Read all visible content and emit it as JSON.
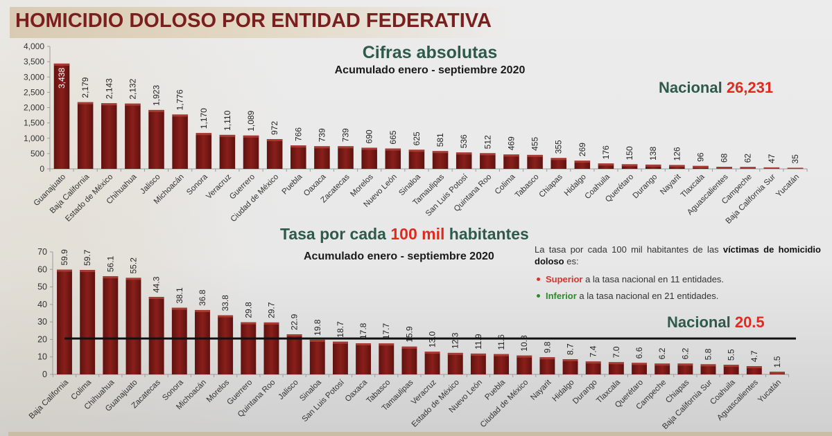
{
  "page": {
    "title": "HOMICIDIO DOLOSO POR ENTIDAD FEDERATIVA"
  },
  "colors": {
    "bar": "#7b1a16",
    "title": "#7a1e1e",
    "green_heading": "#2e5a4c",
    "red_highlight": "#e02a1f",
    "superior": "#d9322a",
    "inferior": "#2c8a2c"
  },
  "chart_data": [
    {
      "type": "bar",
      "title": "Cifras absolutas",
      "subtitle": "Acumulado enero - septiembre 2020",
      "xlabel": "",
      "ylabel": "",
      "ylim": [
        0,
        4000
      ],
      "yticks": [
        0,
        500,
        1000,
        1500,
        2000,
        2500,
        3000,
        3500,
        4000
      ],
      "ytick_labels": [
        "0",
        "500",
        "1,000",
        "1,500",
        "2,000",
        "2,500",
        "3,000",
        "3,500",
        "4,000"
      ],
      "grid": false,
      "legend": "none",
      "national": {
        "label": "Nacional",
        "value_text": "26,231",
        "value": 26231
      },
      "categories": [
        "Guanajuato",
        "Baja California",
        "Estado de México",
        "Chihuahua",
        "Jalisco",
        "Michoacán",
        "Sonora",
        "Veracruz",
        "Guerrero",
        "Ciudad de México",
        "Puebla",
        "Oaxaca",
        "Zacatecas",
        "Morelos",
        "Nuevo León",
        "Sinaloa",
        "Tamaulipas",
        "San Luis Potosí",
        "Quintana Roo",
        "Colima",
        "Tabasco",
        "Chiapas",
        "Hidalgo",
        "Coahuila",
        "Querétaro",
        "Durango",
        "Nayarit",
        "Tlaxcala",
        "Aguascalientes",
        "Campeche",
        "Baja California Sur",
        "Yucatán"
      ],
      "values": [
        3438,
        2179,
        2143,
        2132,
        1923,
        1776,
        1170,
        1110,
        1089,
        972,
        766,
        739,
        739,
        690,
        665,
        625,
        581,
        536,
        512,
        469,
        455,
        355,
        269,
        176,
        150,
        138,
        126,
        96,
        68,
        62,
        47,
        35
      ],
      "value_labels": [
        "3,438",
        "2,179",
        "2,143",
        "2,132",
        "1,923",
        "1,776",
        "1,170",
        "1,110",
        "1,089",
        "972",
        "766",
        "739",
        "739",
        "690",
        "665",
        "625",
        "581",
        "536",
        "512",
        "469",
        "455",
        "355",
        "269",
        "176",
        "150",
        "138",
        "126",
        "96",
        "68",
        "62",
        "47",
        "35"
      ]
    },
    {
      "type": "bar",
      "title_parts": [
        "Tasa por cada ",
        "100 mil",
        " habitantes"
      ],
      "subtitle": "Acumulado enero - septiembre 2020",
      "xlabel": "",
      "ylabel": "",
      "ylim": [
        0,
        70
      ],
      "yticks": [
        0,
        10,
        20,
        30,
        40,
        50,
        60,
        70
      ],
      "ytick_labels": [
        "0",
        "10",
        "20",
        "30",
        "40",
        "50",
        "60",
        "70"
      ],
      "grid": false,
      "legend": "none",
      "reference_line": {
        "label": "Nacional",
        "value": 20.5,
        "value_text": "20.5"
      },
      "note": {
        "text_before": "La tasa por cada 100 mil habitantes de las ",
        "bold": "víctimas de homicidio doloso",
        "text_after": " es:",
        "bullets": [
          {
            "highlight": "Superior",
            "rest": " a la tasa nacional en 11 entidades.",
            "kind": "superior"
          },
          {
            "highlight": "Inferior",
            "rest": " a la tasa nacional en 21 entidades.",
            "kind": "inferior"
          }
        ]
      },
      "categories": [
        "Baja California",
        "Colima",
        "Chihuahua",
        "Guanajuato",
        "Zacatecas",
        "Sonora",
        "Michoacán",
        "Morelos",
        "Guerrero",
        "Quintana Roo",
        "Jalisco",
        "Sinaloa",
        "San Luis Potosí",
        "Oaxaca",
        "Tabasco",
        "Tamaulipas",
        "Veracruz",
        "Estado de México",
        "Nuevo León",
        "Puebla",
        "Ciudad de México",
        "Nayarit",
        "Hidalgo",
        "Durango",
        "Tlaxcala",
        "Querétaro",
        "Campeche",
        "Chiapas",
        "Baja California Sur",
        "Coahuila",
        "Aguascalientes",
        "Yucatán"
      ],
      "values": [
        59.9,
        59.7,
        56.1,
        55.2,
        44.3,
        38.1,
        36.8,
        33.8,
        29.8,
        29.7,
        22.9,
        19.8,
        18.7,
        17.8,
        17.7,
        15.9,
        13.0,
        12.3,
        11.9,
        11.6,
        10.8,
        9.8,
        8.7,
        7.4,
        7.0,
        6.6,
        6.2,
        6.2,
        5.8,
        5.5,
        4.7,
        1.5
      ],
      "value_labels": [
        "59.9",
        "59.7",
        "56.1",
        "55.2",
        "44.3",
        "38.1",
        "36.8",
        "33.8",
        "29.8",
        "29.7",
        "22.9",
        "19.8",
        "18.7",
        "17.8",
        "17.7",
        "15.9",
        "13.0",
        "12.3",
        "11.9",
        "11.6",
        "10.8",
        "9.8",
        "8.7",
        "7.4",
        "7.0",
        "6.6",
        "6.2",
        "6.2",
        "5.8",
        "5.5",
        "4.7",
        "1.5"
      ]
    }
  ]
}
